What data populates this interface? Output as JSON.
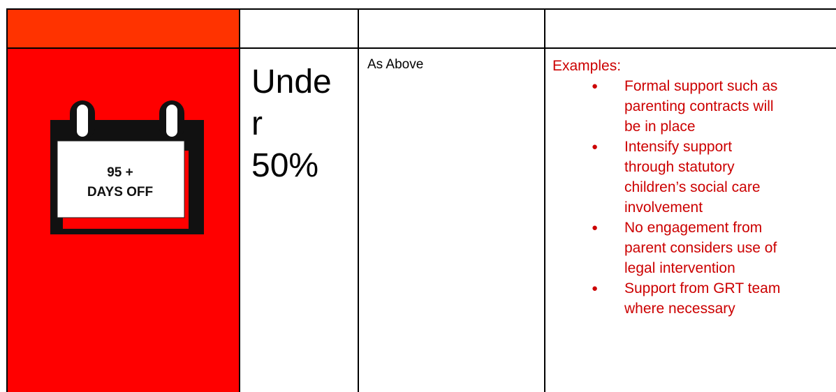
{
  "header_row": {
    "accent_color": "#ff3300"
  },
  "row": {
    "icon": {
      "name": "calendar-icon",
      "background": "#ff0000",
      "label_top": "95 +",
      "label_bottom": "DAYS OFF"
    },
    "attendance_lines": [
      "Unde",
      "r",
      "50%"
    ],
    "actions": "As Above",
    "examples": {
      "title": "Examples:",
      "items": [
        [
          "Formal support such as",
          "parenting contracts will",
          "be in place"
        ],
        [
          "Intensify support",
          "through statutory",
          "children’s social care",
          "involvement"
        ],
        [
          "No engagement from",
          "parent considers use of",
          "legal intervention"
        ],
        [
          "Support from GRT team",
          "where necessary"
        ]
      ],
      "color": "#cc0000"
    }
  }
}
